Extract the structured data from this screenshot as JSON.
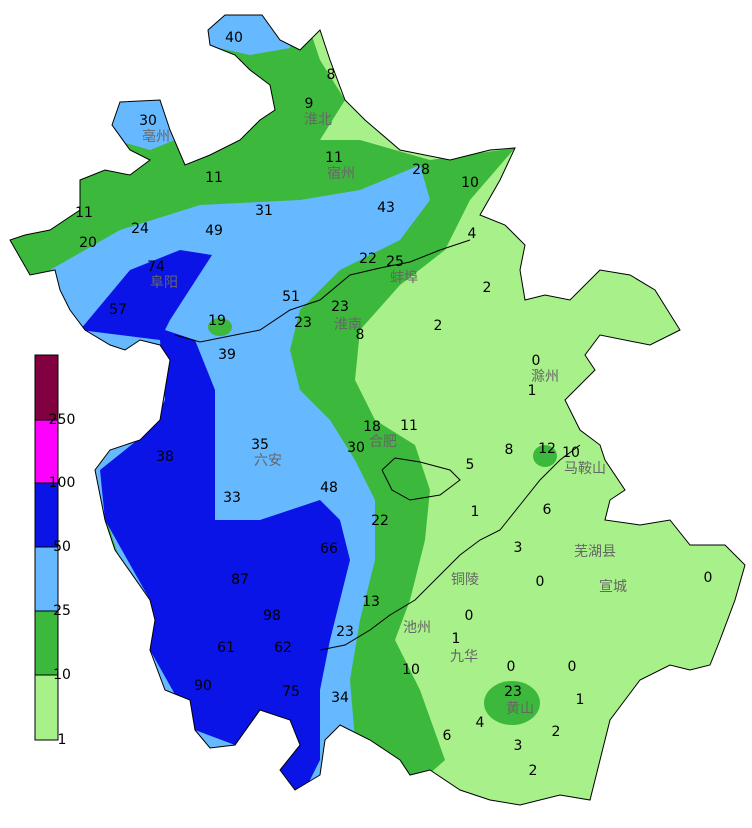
{
  "legend": {
    "labels": [
      "250",
      "100",
      "50",
      "25",
      "10",
      "1"
    ]
  },
  "stations": [
    40,
    8,
    9,
    30,
    11,
    11,
    28,
    10,
    11,
    31,
    43,
    24,
    49,
    20,
    4,
    22,
    25,
    74,
    2,
    51,
    57,
    23,
    19,
    23,
    2,
    8,
    39,
    0,
    1,
    18,
    11,
    35,
    30,
    12,
    10,
    8,
    38,
    5,
    48,
    33,
    1,
    6,
    22,
    3,
    66,
    87,
    0,
    0,
    13,
    98,
    0,
    23,
    1,
    61,
    62,
    0,
    0,
    10,
    90,
    75,
    23,
    34,
    1,
    4,
    6,
    2,
    3,
    2
  ],
  "cities": [
    "亳州",
    "淮北",
    "宿州",
    "阜阳",
    "蚌埠",
    "淮南",
    "滁州",
    "六安",
    "合肥",
    "马鞍山",
    "铜陵",
    "芜湖县",
    "宣城",
    "池州",
    "九华",
    "黄山"
  ]
}
